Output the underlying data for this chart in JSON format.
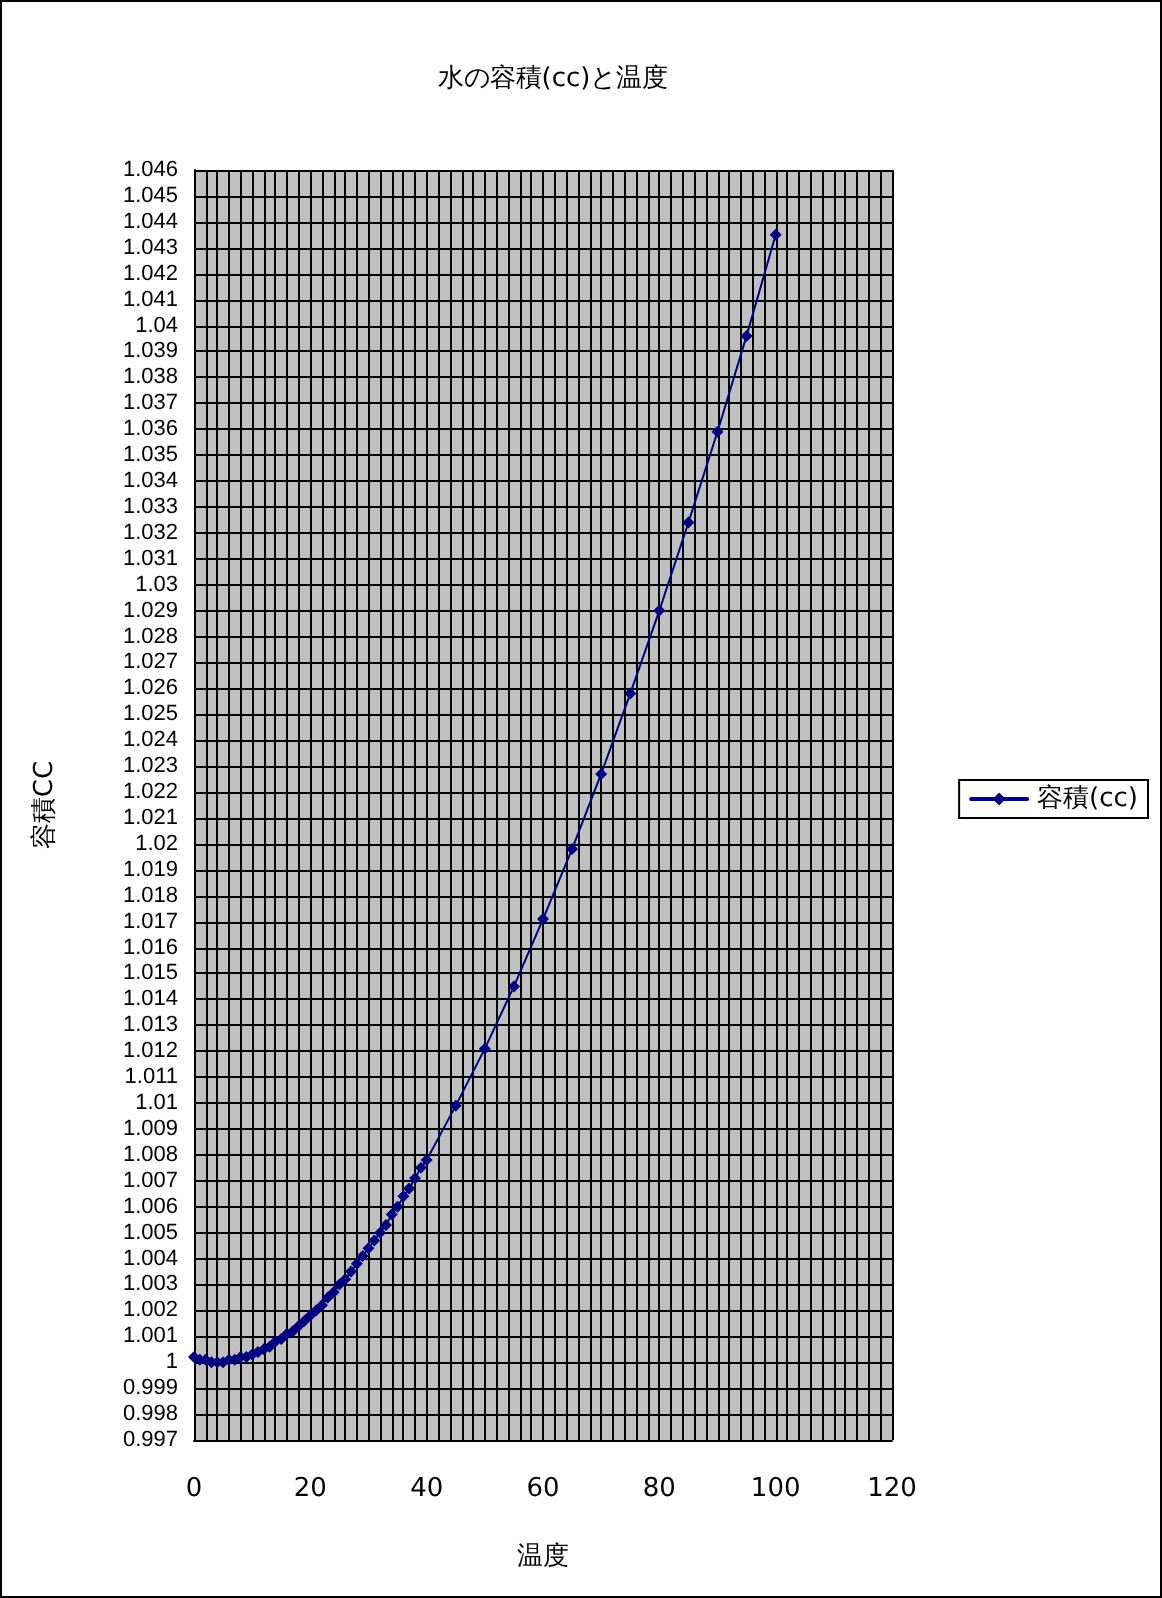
{
  "chart_data": {
    "type": "line",
    "title": "水の容積(cc)と温度",
    "xlabel": "温度",
    "ylabel": "容積CC",
    "x": [
      0,
      1,
      2,
      3,
      4,
      5,
      6,
      7,
      8,
      9,
      10,
      11,
      12,
      13,
      14,
      15,
      16,
      17,
      18,
      19,
      20,
      21,
      22,
      23,
      24,
      25,
      26,
      27,
      28,
      29,
      30,
      31,
      32,
      33,
      34,
      35,
      36,
      37,
      38,
      39,
      40,
      45,
      50,
      55,
      60,
      65,
      70,
      75,
      80,
      85,
      90,
      95,
      100
    ],
    "series": [
      {
        "name": "容積(cc)",
        "color": "#000080",
        "values": [
          1.0002,
          1.0001,
          1.0001,
          1,
          1,
          1,
          1.0001,
          1.0001,
          1.0002,
          1.0002,
          1.0003,
          1.0004,
          1.0005,
          1.0006,
          1.0008,
          1.0009,
          1.0011,
          1.0012,
          1.0014,
          1.0016,
          1.0018,
          1.002,
          1.0022,
          1.0025,
          1.0027,
          1.003,
          1.0032,
          1.0035,
          1.0038,
          1.0041,
          1.0044,
          1.0047,
          1.005,
          1.0053,
          1.0057,
          1.006,
          1.0064,
          1.0067,
          1.0071,
          1.0075,
          1.0078,
          1.0099,
          1.0121,
          1.0145,
          1.0171,
          1.0198,
          1.0227,
          1.0258,
          1.029,
          1.0324,
          1.0359,
          1.0396,
          1.0435
        ]
      }
    ],
    "xlim": [
      0,
      120
    ],
    "xticks": [
      0,
      {
        "value": 2,
        "label": null
      },
      {
        "value": 4,
        "label": null
      },
      {
        "value": 6,
        "label": null
      },
      {
        "value": 8,
        "label": null
      },
      {
        "value": 10,
        "label": null
      },
      {
        "value": 12,
        "label": null
      },
      {
        "value": 14,
        "label": null
      },
      {
        "value": 16,
        "label": null
      },
      {
        "value": 18,
        "label": null
      },
      20,
      {
        "value": 22,
        "label": null
      },
      {
        "value": 24,
        "label": null
      },
      {
        "value": 26,
        "label": null
      },
      {
        "value": 28,
        "label": null
      },
      {
        "value": 30,
        "label": null
      },
      {
        "value": 32,
        "label": null
      },
      {
        "value": 34,
        "label": null
      },
      {
        "value": 36,
        "label": null
      },
      {
        "value": 38,
        "label": null
      },
      40,
      {
        "value": 42,
        "label": null
      },
      {
        "value": 44,
        "label": null
      },
      {
        "value": 46,
        "label": null
      },
      {
        "value": 48,
        "label": null
      },
      {
        "value": 50,
        "label": null
      },
      {
        "value": 52,
        "label": null
      },
      {
        "value": 54,
        "label": null
      },
      {
        "value": 56,
        "label": null
      },
      {
        "value": 58,
        "label": null
      },
      60,
      {
        "value": 62,
        "label": null
      },
      {
        "value": 64,
        "label": null
      },
      {
        "value": 66,
        "label": null
      },
      {
        "value": 68,
        "label": null
      },
      {
        "value": 70,
        "label": null
      },
      {
        "value": 72,
        "label": null
      },
      {
        "value": 74,
        "label": null
      },
      {
        "value": 76,
        "label": null
      },
      {
        "value": 78,
        "label": null
      },
      80,
      {
        "value": 82,
        "label": null
      },
      {
        "value": 84,
        "label": null
      },
      {
        "value": 86,
        "label": null
      },
      {
        "value": 88,
        "label": null
      },
      {
        "value": 90,
        "label": null
      },
      {
        "value": 92,
        "label": null
      },
      {
        "value": 94,
        "label": null
      },
      {
        "value": 96,
        "label": null
      },
      {
        "value": 98,
        "label": null
      },
      100,
      {
        "value": 102,
        "label": null
      },
      {
        "value": 104,
        "label": null
      },
      {
        "value": 106,
        "label": null
      },
      {
        "value": 108,
        "label": null
      },
      {
        "value": 110,
        "label": null
      },
      {
        "value": 112,
        "label": null
      },
      {
        "value": 114,
        "label": null
      },
      {
        "value": 116,
        "label": null
      },
      {
        "value": 118,
        "label": null
      },
      120
    ],
    "ylim": [
      0.997,
      1.046
    ],
    "yticks": [
      0.997,
      0.998,
      0.999,
      1,
      1.001,
      1.002,
      1.003,
      1.004,
      1.005,
      1.006,
      1.007,
      1.008,
      1.009,
      1.01,
      1.011,
      1.012,
      1.013,
      1.014,
      1.015,
      1.016,
      1.017,
      1.018,
      1.019,
      1.02,
      1.021,
      1.022,
      1.023,
      1.024,
      1.025,
      1.026,
      1.027,
      1.028,
      1.029,
      1.03,
      1.031,
      1.032,
      1.033,
      1.034,
      1.035,
      1.036,
      1.037,
      1.038,
      1.039,
      1.04,
      1.041,
      1.042,
      1.043,
      1.044,
      1.045,
      1.046
    ],
    "grid": true,
    "legend": "right",
    "marker": "diamond",
    "line_style": "solid"
  }
}
